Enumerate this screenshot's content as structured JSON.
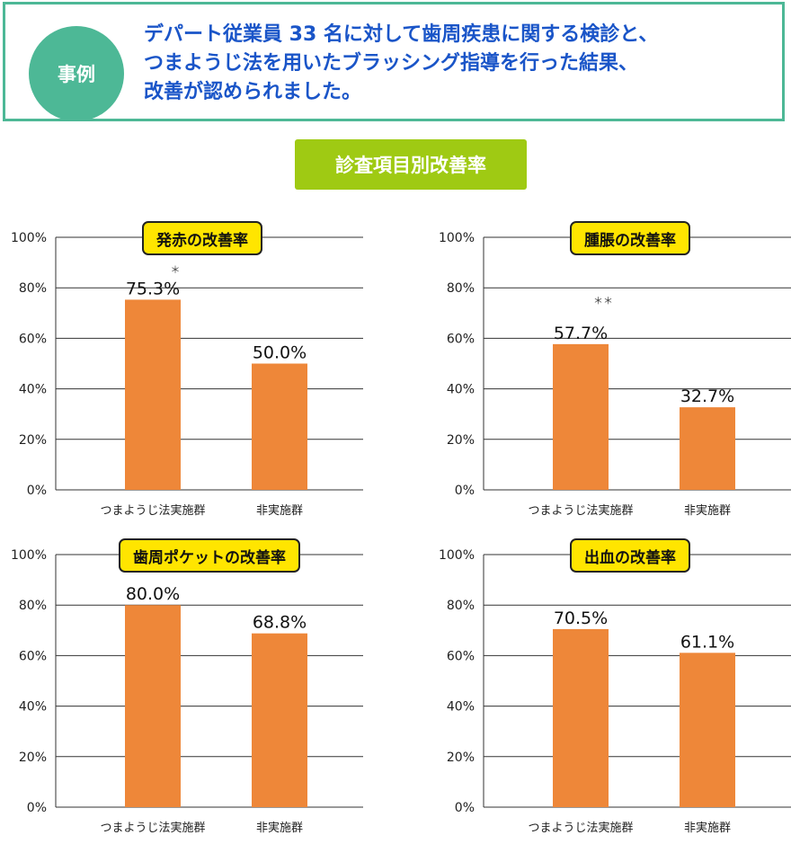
{
  "header": {
    "badge": "事例",
    "lines": [
      "デパート従業員 33 名に対して歯周疾患に関する検診と、",
      "つまようじ法を用いたブラッシング指導を行った結果、",
      "改善が認められました。"
    ]
  },
  "section_title": "診査項目別改善率",
  "colors": {
    "bar": "#ee8739",
    "accent": "#4db896",
    "title_bg": "#9fca13",
    "panel_title_bg": "#ffe500"
  },
  "chart_data": [
    {
      "type": "bar",
      "title": "発赤の改善率",
      "categories": [
        "つまようじ法実施群",
        "非実施群"
      ],
      "values": [
        75.3,
        50.0
      ],
      "value_labels": [
        "75.3%",
        "50.0%"
      ],
      "significance": "＊",
      "yticks": [
        "100%",
        "80%",
        "60%",
        "40%",
        "20%",
        "0%"
      ],
      "ylim": [
        0,
        100
      ],
      "grid": true
    },
    {
      "type": "bar",
      "title": "腫脹の改善率",
      "categories": [
        "つまようじ法実施群",
        "非実施群"
      ],
      "values": [
        57.7,
        32.7
      ],
      "value_labels": [
        "57.7%",
        "32.7%"
      ],
      "significance": "＊＊",
      "yticks": [
        "100%",
        "80%",
        "60%",
        "40%",
        "20%",
        "0%"
      ],
      "ylim": [
        0,
        100
      ],
      "grid": true
    },
    {
      "type": "bar",
      "title": "歯周ポケットの改善率",
      "categories": [
        "つまようじ法実施群",
        "非実施群"
      ],
      "values": [
        80.0,
        68.8
      ],
      "value_labels": [
        "80.0%",
        "68.8%"
      ],
      "significance": "",
      "yticks": [
        "100%",
        "80%",
        "60%",
        "40%",
        "20%",
        "0%"
      ],
      "ylim": [
        0,
        100
      ],
      "grid": true
    },
    {
      "type": "bar",
      "title": "出血の改善率",
      "categories": [
        "つまようじ法実施群",
        "非実施群"
      ],
      "values": [
        70.5,
        61.1
      ],
      "value_labels": [
        "70.5%",
        "61.1%"
      ],
      "significance": "",
      "yticks": [
        "100%",
        "80%",
        "60%",
        "40%",
        "20%",
        "0%"
      ],
      "ylim": [
        0,
        100
      ],
      "grid": true
    }
  ]
}
